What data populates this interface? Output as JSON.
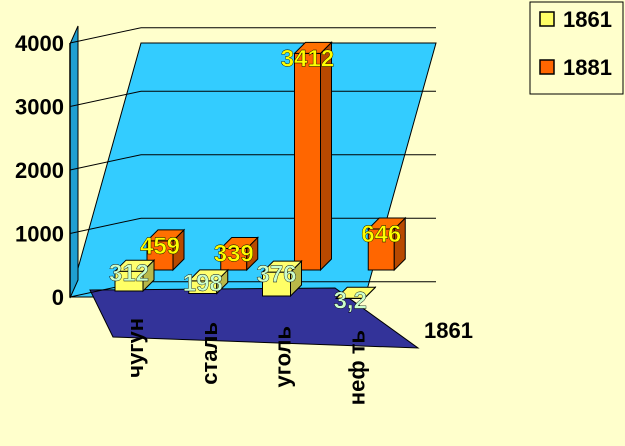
{
  "chart_data": {
    "type": "bar",
    "style": "3d-clustered-column",
    "categories": [
      "чугун",
      "сталь",
      "уголь",
      "неф ть"
    ],
    "series": [
      {
        "name": "1861",
        "values": [
          312,
          198,
          376,
          3.2
        ],
        "labels": [
          "312",
          "198",
          "376",
          "3,2"
        ],
        "color": "#ffff66",
        "label_color": "#ccffcc"
      },
      {
        "name": "1881",
        "values": [
          459,
          339,
          3412,
          646
        ],
        "labels": [
          "459",
          "339",
          "3412",
          "646"
        ],
        "color": "#ff6600",
        "label_color": "#ffff00"
      }
    ],
    "y_ticks": [
      "0",
      "1000",
      "2000",
      "3000",
      "4000"
    ],
    "ylim": [
      0,
      4000
    ],
    "depth_axis_label": "1861",
    "legend_position": "top-right",
    "colors": {
      "background": "#ffffcc",
      "back_wall": "#33ccff",
      "floor": "#333399",
      "gridline": "#000000"
    },
    "title": "",
    "xlabel": "",
    "ylabel": ""
  }
}
